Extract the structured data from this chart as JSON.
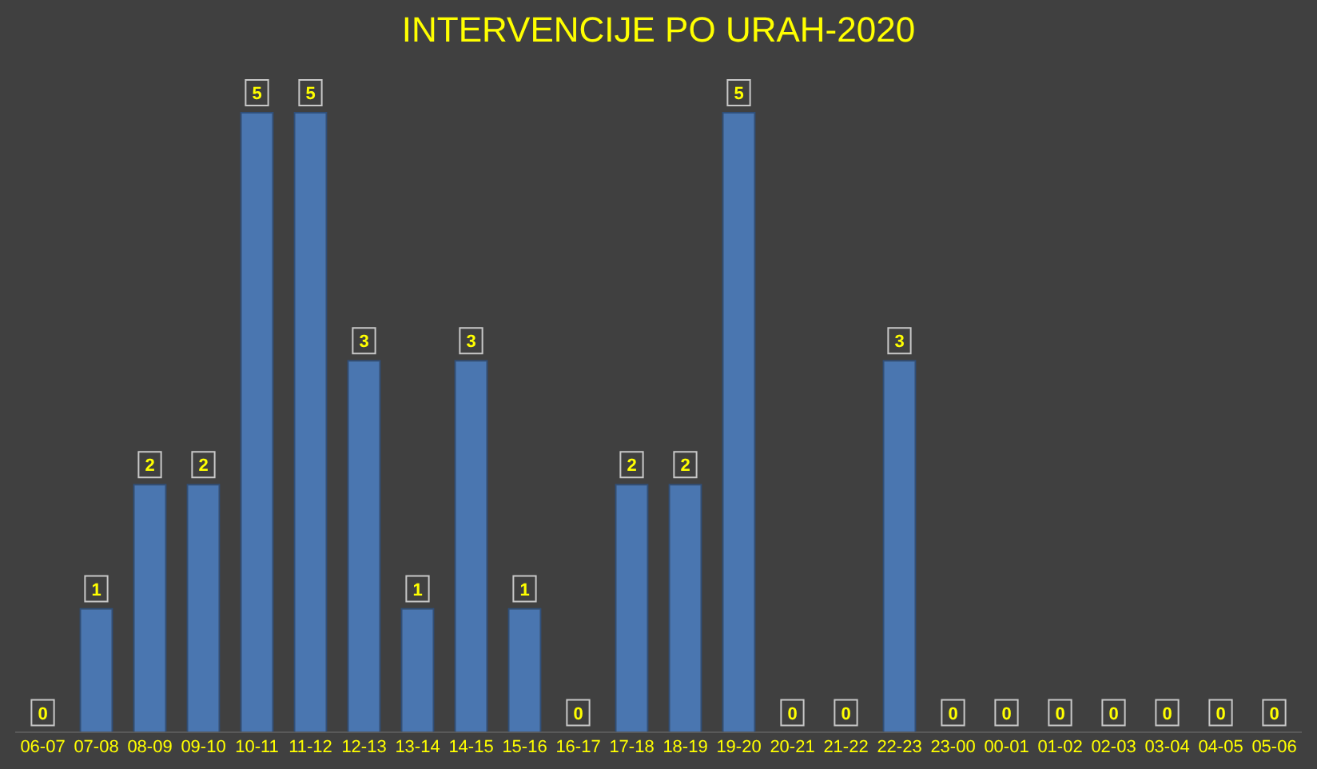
{
  "chart_data": {
    "type": "bar",
    "title": "INTERVENCIJE PO URAH-2020",
    "categories": [
      "06-07",
      "07-08",
      "08-09",
      "09-10",
      "10-11",
      "11-12",
      "12-13",
      "13-14",
      "14-15",
      "15-16",
      "16-17",
      "17-18",
      "18-19",
      "19-20",
      "20-21",
      "21-22",
      "22-23",
      "23-00",
      "00-01",
      "01-02",
      "02-03",
      "03-04",
      "04-05",
      "05-06"
    ],
    "values": [
      0,
      1,
      2,
      2,
      5,
      5,
      3,
      1,
      3,
      1,
      0,
      2,
      2,
      5,
      0,
      0,
      3,
      0,
      0,
      0,
      0,
      0,
      0,
      0
    ],
    "color": "#4a76b0",
    "data_labels": true,
    "grid": false,
    "legend": false
  }
}
